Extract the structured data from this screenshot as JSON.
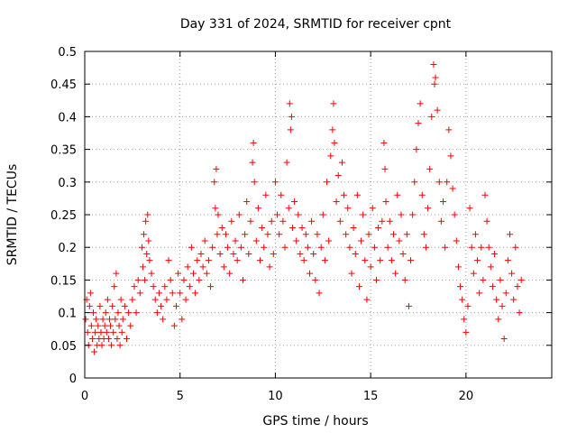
{
  "chart_data": {
    "type": "scatter",
    "title": "Day 331 of 2024, SRMTID for receiver cpnt",
    "xlabel": "GPS time / hours",
    "ylabel": "SRMTID / TECUs",
    "xlim": [
      0,
      24.5
    ],
    "ylim": [
      0,
      0.5
    ],
    "xticks": [
      0,
      5,
      10,
      15,
      20
    ],
    "xtick_labels": [
      "0",
      "5",
      "10",
      "15",
      "20"
    ],
    "yticks": [
      0,
      0.05,
      0.1,
      0.15,
      0.2,
      0.25,
      0.3,
      0.35,
      0.4,
      0.45,
      0.5
    ],
    "ytick_labels": [
      "0",
      "0.05",
      "0.1",
      "0.15",
      "0.2",
      "0.25",
      "0.3",
      "0.35",
      "0.4",
      "0.45",
      "0.5"
    ],
    "grid": true,
    "marker": "+",
    "color": "#ff0000",
    "series": [
      {
        "name": "SRMTID",
        "points": [
          [
            0.05,
            0.09
          ],
          [
            0.1,
            0.12
          ],
          [
            0.15,
            0.07
          ],
          [
            0.2,
            0.05
          ],
          [
            0.25,
            0.11
          ],
          [
            0.3,
            0.13
          ],
          [
            0.35,
            0.08
          ],
          [
            0.4,
            0.06
          ],
          [
            0.45,
            0.1
          ],
          [
            0.5,
            0.04
          ],
          [
            0.55,
            0.07
          ],
          [
            0.6,
            0.09
          ],
          [
            0.65,
            0.05
          ],
          [
            0.7,
            0.08
          ],
          [
            0.75,
            0.06
          ],
          [
            0.8,
            0.11
          ],
          [
            0.85,
            0.07
          ],
          [
            0.9,
            0.05
          ],
          [
            0.95,
            0.09
          ],
          [
            1.0,
            0.06
          ],
          [
            1.05,
            0.08
          ],
          [
            1.1,
            0.1
          ],
          [
            1.15,
            0.07
          ],
          [
            1.2,
            0.12
          ],
          [
            1.25,
            0.06
          ],
          [
            1.3,
            0.09
          ],
          [
            1.35,
            0.08
          ],
          [
            1.4,
            0.05
          ],
          [
            1.45,
            0.11
          ],
          [
            1.5,
            0.07
          ],
          [
            1.55,
            0.14
          ],
          [
            1.6,
            0.09
          ],
          [
            1.65,
            0.16
          ],
          [
            1.7,
            0.06
          ],
          [
            1.75,
            0.1
          ],
          [
            1.8,
            0.08
          ],
          [
            1.85,
            0.05
          ],
          [
            1.9,
            0.12
          ],
          [
            1.95,
            0.07
          ],
          [
            2.0,
            0.09
          ],
          [
            2.1,
            0.11
          ],
          [
            2.2,
            0.06
          ],
          [
            2.3,
            0.1
          ],
          [
            2.4,
            0.08
          ],
          [
            2.5,
            0.12
          ],
          [
            2.6,
            0.14
          ],
          [
            2.7,
            0.1
          ],
          [
            2.8,
            0.15
          ],
          [
            2.9,
            0.13
          ],
          [
            3.0,
            0.2
          ],
          [
            3.05,
            0.17
          ],
          [
            3.1,
            0.22
          ],
          [
            3.15,
            0.15
          ],
          [
            3.2,
            0.24
          ],
          [
            3.25,
            0.19
          ],
          [
            3.3,
            0.25
          ],
          [
            3.35,
            0.21
          ],
          [
            3.4,
            0.18
          ],
          [
            3.5,
            0.16
          ],
          [
            3.6,
            0.14
          ],
          [
            3.7,
            0.12
          ],
          [
            3.8,
            0.1
          ],
          [
            3.9,
            0.13
          ],
          [
            4.0,
            0.11
          ],
          [
            4.1,
            0.09
          ],
          [
            4.2,
            0.14
          ],
          [
            4.3,
            0.12
          ],
          [
            4.4,
            0.18
          ],
          [
            4.5,
            0.15
          ],
          [
            4.6,
            0.13
          ],
          [
            4.7,
            0.08
          ],
          [
            4.8,
            0.11
          ],
          [
            4.9,
            0.16
          ],
          [
            5.0,
            0.13
          ],
          [
            5.1,
            0.09
          ],
          [
            5.2,
            0.15
          ],
          [
            5.3,
            0.12
          ],
          [
            5.4,
            0.17
          ],
          [
            5.5,
            0.14
          ],
          [
            5.6,
            0.2
          ],
          [
            5.7,
            0.16
          ],
          [
            5.8,
            0.13
          ],
          [
            5.9,
            0.18
          ],
          [
            6.0,
            0.15
          ],
          [
            6.1,
            0.19
          ],
          [
            6.2,
            0.17
          ],
          [
            6.3,
            0.21
          ],
          [
            6.4,
            0.16
          ],
          [
            6.5,
            0.18
          ],
          [
            6.6,
            0.14
          ],
          [
            6.7,
            0.2
          ],
          [
            6.8,
            0.3
          ],
          [
            6.85,
            0.26
          ],
          [
            6.9,
            0.32
          ],
          [
            6.95,
            0.22
          ],
          [
            7.0,
            0.25
          ],
          [
            7.1,
            0.19
          ],
          [
            7.2,
            0.23
          ],
          [
            7.3,
            0.17
          ],
          [
            7.4,
            0.22
          ],
          [
            7.5,
            0.2
          ],
          [
            7.6,
            0.16
          ],
          [
            7.7,
            0.24
          ],
          [
            7.8,
            0.19
          ],
          [
            7.9,
            0.21
          ],
          [
            8.0,
            0.18
          ],
          [
            8.1,
            0.25
          ],
          [
            8.2,
            0.2
          ],
          [
            8.3,
            0.15
          ],
          [
            8.4,
            0.22
          ],
          [
            8.5,
            0.27
          ],
          [
            8.6,
            0.19
          ],
          [
            8.7,
            0.24
          ],
          [
            8.8,
            0.33
          ],
          [
            8.85,
            0.36
          ],
          [
            8.9,
            0.3
          ],
          [
            9.0,
            0.21
          ],
          [
            9.1,
            0.26
          ],
          [
            9.2,
            0.18
          ],
          [
            9.3,
            0.23
          ],
          [
            9.4,
            0.2
          ],
          [
            9.5,
            0.28
          ],
          [
            9.6,
            0.22
          ],
          [
            9.7,
            0.17
          ],
          [
            9.8,
            0.24
          ],
          [
            9.9,
            0.19
          ],
          [
            10.0,
            0.3
          ],
          [
            10.1,
            0.25
          ],
          [
            10.2,
            0.22
          ],
          [
            10.3,
            0.28
          ],
          [
            10.4,
            0.24
          ],
          [
            10.5,
            0.2
          ],
          [
            10.6,
            0.33
          ],
          [
            10.7,
            0.26
          ],
          [
            10.75,
            0.42
          ],
          [
            10.8,
            0.38
          ],
          [
            10.85,
            0.4
          ],
          [
            10.9,
            0.23
          ],
          [
            11.0,
            0.27
          ],
          [
            11.1,
            0.21
          ],
          [
            11.2,
            0.25
          ],
          [
            11.3,
            0.19
          ],
          [
            11.4,
            0.23
          ],
          [
            11.5,
            0.18
          ],
          [
            11.6,
            0.22
          ],
          [
            11.7,
            0.2
          ],
          [
            11.8,
            0.16
          ],
          [
            11.9,
            0.24
          ],
          [
            12.0,
            0.19
          ],
          [
            12.1,
            0.15
          ],
          [
            12.2,
            0.22
          ],
          [
            12.3,
            0.13
          ],
          [
            12.4,
            0.2
          ],
          [
            12.5,
            0.25
          ],
          [
            12.6,
            0.18
          ],
          [
            12.7,
            0.3
          ],
          [
            12.8,
            0.21
          ],
          [
            12.9,
            0.34
          ],
          [
            13.0,
            0.38
          ],
          [
            13.05,
            0.42
          ],
          [
            13.1,
            0.36
          ],
          [
            13.2,
            0.27
          ],
          [
            13.3,
            0.31
          ],
          [
            13.4,
            0.24
          ],
          [
            13.5,
            0.33
          ],
          [
            13.6,
            0.28
          ],
          [
            13.7,
            0.22
          ],
          [
            13.8,
            0.26
          ],
          [
            13.9,
            0.2
          ],
          [
            14.0,
            0.16
          ],
          [
            14.1,
            0.23
          ],
          [
            14.2,
            0.19
          ],
          [
            14.3,
            0.28
          ],
          [
            14.4,
            0.14
          ],
          [
            14.5,
            0.21
          ],
          [
            14.6,
            0.25
          ],
          [
            14.7,
            0.18
          ],
          [
            14.8,
            0.12
          ],
          [
            14.9,
            0.22
          ],
          [
            15.0,
            0.17
          ],
          [
            15.1,
            0.26
          ],
          [
            15.2,
            0.2
          ],
          [
            15.3,
            0.15
          ],
          [
            15.4,
            0.23
          ],
          [
            15.5,
            0.18
          ],
          [
            15.6,
            0.24
          ],
          [
            15.7,
            0.36
          ],
          [
            15.75,
            0.32
          ],
          [
            15.8,
            0.27
          ],
          [
            15.9,
            0.2
          ],
          [
            16.0,
            0.24
          ],
          [
            16.1,
            0.18
          ],
          [
            16.2,
            0.22
          ],
          [
            16.3,
            0.16
          ],
          [
            16.4,
            0.28
          ],
          [
            16.5,
            0.21
          ],
          [
            16.6,
            0.25
          ],
          [
            16.7,
            0.19
          ],
          [
            16.8,
            0.15
          ],
          [
            16.9,
            0.22
          ],
          [
            17.0,
            0.11
          ],
          [
            17.1,
            0.18
          ],
          [
            17.2,
            0.25
          ],
          [
            17.3,
            0.3
          ],
          [
            17.4,
            0.35
          ],
          [
            17.5,
            0.39
          ],
          [
            17.6,
            0.42
          ],
          [
            17.7,
            0.28
          ],
          [
            17.8,
            0.22
          ],
          [
            17.9,
            0.2
          ],
          [
            18.0,
            0.26
          ],
          [
            18.1,
            0.32
          ],
          [
            18.2,
            0.4
          ],
          [
            18.3,
            0.48
          ],
          [
            18.35,
            0.45
          ],
          [
            18.4,
            0.46
          ],
          [
            18.5,
            0.41
          ],
          [
            18.6,
            0.3
          ],
          [
            18.7,
            0.24
          ],
          [
            18.8,
            0.27
          ],
          [
            18.9,
            0.2
          ],
          [
            19.0,
            0.3
          ],
          [
            19.1,
            0.38
          ],
          [
            19.2,
            0.34
          ],
          [
            19.3,
            0.29
          ],
          [
            19.4,
            0.25
          ],
          [
            19.5,
            0.21
          ],
          [
            19.6,
            0.17
          ],
          [
            19.7,
            0.14
          ],
          [
            19.8,
            0.12
          ],
          [
            19.9,
            0.09
          ],
          [
            20.0,
            0.07
          ],
          [
            20.1,
            0.11
          ],
          [
            20.2,
            0.26
          ],
          [
            20.3,
            0.2
          ],
          [
            20.4,
            0.16
          ],
          [
            20.5,
            0.22
          ],
          [
            20.6,
            0.18
          ],
          [
            20.7,
            0.13
          ],
          [
            20.8,
            0.2
          ],
          [
            20.9,
            0.15
          ],
          [
            21.0,
            0.28
          ],
          [
            21.1,
            0.24
          ],
          [
            21.2,
            0.2
          ],
          [
            21.3,
            0.17
          ],
          [
            21.4,
            0.14
          ],
          [
            21.5,
            0.19
          ],
          [
            21.6,
            0.12
          ],
          [
            21.7,
            0.09
          ],
          [
            21.8,
            0.15
          ],
          [
            21.9,
            0.11
          ],
          [
            22.0,
            0.06
          ],
          [
            22.1,
            0.13
          ],
          [
            22.2,
            0.18
          ],
          [
            22.3,
            0.22
          ],
          [
            22.4,
            0.16
          ],
          [
            22.5,
            0.12
          ],
          [
            22.6,
            0.2
          ],
          [
            22.7,
            0.14
          ],
          [
            22.8,
            0.1
          ],
          [
            22.9,
            0.15
          ]
        ]
      }
    ]
  }
}
